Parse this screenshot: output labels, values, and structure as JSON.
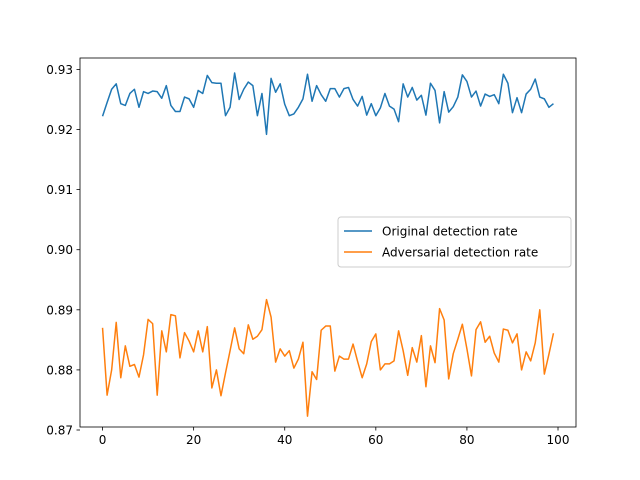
{
  "chart_data": {
    "type": "line",
    "title": "",
    "xlabel": "",
    "ylabel": "",
    "xlim": [
      -4.95,
      103.95
    ],
    "ylim": [
      0.8705,
      0.9319
    ],
    "xticks": [
      0,
      20,
      40,
      60,
      80,
      100
    ],
    "yticks": [
      0.87,
      0.88,
      0.89,
      0.9,
      0.91,
      0.92,
      0.93
    ],
    "ytick_labels": [
      "0.87",
      "0.88",
      "0.89",
      "0.90",
      "0.91",
      "0.92",
      "0.93"
    ],
    "grid": false,
    "legend_placement": "center-right",
    "series": [
      {
        "name": "Original detection rate",
        "color": "#1f77b4",
        "x": [
          0,
          1,
          2,
          3,
          4,
          5,
          6,
          7,
          8,
          9,
          10,
          11,
          12,
          13,
          14,
          15,
          16,
          17,
          18,
          19,
          20,
          21,
          22,
          23,
          24,
          25,
          26,
          27,
          28,
          29,
          30,
          31,
          32,
          33,
          34,
          35,
          36,
          37,
          38,
          39,
          40,
          41,
          42,
          43,
          44,
          45,
          46,
          47,
          48,
          49,
          50,
          51,
          52,
          53,
          54,
          55,
          56,
          57,
          58,
          59,
          60,
          61,
          62,
          63,
          64,
          65,
          66,
          67,
          68,
          69,
          70,
          71,
          72,
          73,
          74,
          75,
          76,
          77,
          78,
          79,
          80,
          81,
          82,
          83,
          84,
          85,
          86,
          87,
          88,
          89,
          90,
          91,
          92,
          93,
          94,
          95,
          96,
          97,
          98,
          99
        ],
        "values": [
          0.9222,
          0.9245,
          0.9267,
          0.9276,
          0.9243,
          0.924,
          0.926,
          0.9267,
          0.9237,
          0.9263,
          0.926,
          0.9264,
          0.9263,
          0.9252,
          0.9273,
          0.924,
          0.923,
          0.923,
          0.9254,
          0.9251,
          0.9237,
          0.9265,
          0.926,
          0.929,
          0.9278,
          0.9277,
          0.9277,
          0.9223,
          0.9237,
          0.9294,
          0.925,
          0.9267,
          0.9279,
          0.9273,
          0.9223,
          0.926,
          0.9192,
          0.9285,
          0.9262,
          0.9276,
          0.9242,
          0.9223,
          0.9226,
          0.9237,
          0.9251,
          0.9292,
          0.9247,
          0.9273,
          0.9258,
          0.9247,
          0.9268,
          0.9268,
          0.9254,
          0.9268,
          0.927,
          0.925,
          0.9239,
          0.9255,
          0.9224,
          0.9243,
          0.9223,
          0.9236,
          0.926,
          0.9239,
          0.9234,
          0.9213,
          0.9276,
          0.9254,
          0.927,
          0.9249,
          0.9257,
          0.9224,
          0.9277,
          0.9265,
          0.9211,
          0.9263,
          0.9229,
          0.9238,
          0.9254,
          0.9291,
          0.928,
          0.9254,
          0.9264,
          0.9239,
          0.9259,
          0.9255,
          0.9258,
          0.9243,
          0.9292,
          0.9277,
          0.9228,
          0.9253,
          0.9228,
          0.9259,
          0.9267,
          0.9284,
          0.9254,
          0.9251,
          0.9237,
          0.9243
        ]
      },
      {
        "name": "Adversarial detection rate",
        "color": "#ff7f0e",
        "x": [
          0,
          1,
          2,
          3,
          4,
          5,
          6,
          7,
          8,
          9,
          10,
          11,
          12,
          13,
          14,
          15,
          16,
          17,
          18,
          19,
          20,
          21,
          22,
          23,
          24,
          25,
          26,
          27,
          28,
          29,
          30,
          31,
          32,
          33,
          34,
          35,
          36,
          37,
          38,
          39,
          40,
          41,
          42,
          43,
          44,
          45,
          46,
          47,
          48,
          49,
          50,
          51,
          52,
          53,
          54,
          55,
          56,
          57,
          58,
          59,
          60,
          61,
          62,
          63,
          64,
          65,
          66,
          67,
          68,
          69,
          70,
          71,
          72,
          73,
          74,
          75,
          76,
          77,
          78,
          79,
          80,
          81,
          82,
          83,
          84,
          85,
          86,
          87,
          88,
          89,
          90,
          91,
          92,
          93,
          94,
          95,
          96,
          97,
          98,
          99
        ],
        "values": [
          0.887,
          0.8758,
          0.88,
          0.8879,
          0.8787,
          0.884,
          0.8806,
          0.8809,
          0.8788,
          0.8825,
          0.8884,
          0.8877,
          0.8758,
          0.8865,
          0.883,
          0.8892,
          0.889,
          0.882,
          0.8862,
          0.8848,
          0.883,
          0.8865,
          0.883,
          0.8872,
          0.877,
          0.88,
          0.8757,
          0.8795,
          0.8832,
          0.887,
          0.8835,
          0.8827,
          0.8875,
          0.8851,
          0.8856,
          0.8867,
          0.8917,
          0.8888,
          0.8813,
          0.8835,
          0.8823,
          0.8832,
          0.8803,
          0.8818,
          0.8846,
          0.8723,
          0.8797,
          0.8784,
          0.8866,
          0.8873,
          0.8873,
          0.8798,
          0.8823,
          0.8818,
          0.8818,
          0.8843,
          0.8814,
          0.8787,
          0.881,
          0.8847,
          0.886,
          0.88,
          0.881,
          0.881,
          0.8815,
          0.8865,
          0.8832,
          0.8791,
          0.8837,
          0.8813,
          0.8857,
          0.8772,
          0.884,
          0.8812,
          0.8902,
          0.8883,
          0.8785,
          0.8827,
          0.8851,
          0.8876,
          0.8835,
          0.879,
          0.8867,
          0.888,
          0.8846,
          0.8856,
          0.8828,
          0.8813,
          0.8868,
          0.8866,
          0.8845,
          0.886,
          0.88,
          0.883,
          0.8815,
          0.8845,
          0.89,
          0.8793,
          0.8826,
          0.8861
        ]
      }
    ]
  }
}
